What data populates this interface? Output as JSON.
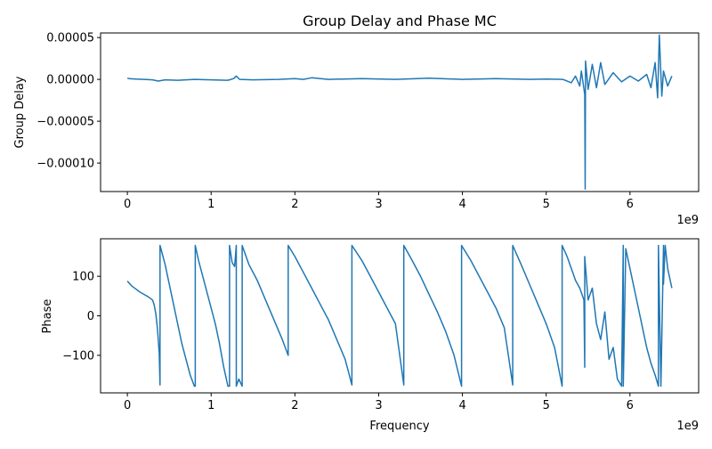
{
  "figure": {
    "title": "Group Delay and Phase MC",
    "line_color": "#1f77b4"
  },
  "chart_data": [
    {
      "type": "line",
      "title": "Group Delay and Phase MC",
      "xlabel": "",
      "ylabel": "Group Delay",
      "x_offset_text": "1e9",
      "xlim": [
        -0.32,
        6.82
      ],
      "ylim": [
        -0.000134,
        5.55e-05
      ],
      "xticks": [
        0,
        1,
        2,
        3,
        4,
        5,
        6
      ],
      "xtick_labels": [
        "0",
        "1",
        "2",
        "3",
        "4",
        "5",
        "6"
      ],
      "yticks": [
        5e-05,
        0.0,
        -5e-05,
        -0.0001
      ],
      "ytick_labels": [
        "0.00005",
        "0.00000",
        "−0.00005",
        "−0.00010"
      ],
      "grid": false,
      "series": [
        {
          "x": [
            0.0,
            0.02,
            0.1,
            0.2,
            0.3,
            0.37,
            0.45,
            0.6,
            0.8,
            1.0,
            1.2,
            1.27,
            1.3,
            1.34,
            1.5,
            1.8,
            2.0,
            2.1,
            2.2,
            2.4,
            2.8,
            3.2,
            3.6,
            4.0,
            4.4,
            4.8,
            5.0,
            5.2,
            5.3,
            5.35,
            5.4,
            5.42,
            5.46,
            5.465,
            5.47,
            5.5,
            5.55,
            5.6,
            5.65,
            5.7,
            5.8,
            5.9,
            6.0,
            6.1,
            6.2,
            6.25,
            6.3,
            6.33,
            6.35,
            6.38,
            6.4,
            6.45,
            6.5
          ],
          "y": [
            1.5e-06,
            1e-06,
            5e-07,
            0.0,
            -5e-07,
            -2e-06,
            -5e-07,
            -1e-06,
            0.0,
            -5e-07,
            -1e-06,
            1e-06,
            4e-06,
            0.0,
            -5e-07,
            0.0,
            1e-06,
            0.0,
            2e-06,
            0.0,
            1e-06,
            0.0,
            1.5e-06,
            0.0,
            1e-06,
            0.0,
            5e-07,
            0.0,
            -4e-06,
            4e-06,
            -8e-06,
            1e-05,
            -1.8e-05,
            -0.000131,
            2.2e-05,
            -1.2e-05,
            1.8e-05,
            -1e-05,
            2e-05,
            -6e-06,
            8e-06,
            -3e-06,
            4e-06,
            -2e-06,
            6e-06,
            -1e-05,
            2e-05,
            -2.2e-05,
            5.3e-05,
            -2e-05,
            1e-05,
            -8e-06,
            4e-06
          ]
        }
      ]
    },
    {
      "type": "line",
      "title": "",
      "xlabel": "Frequency",
      "ylabel": "Phase",
      "x_offset_text": "1e9",
      "xlim": [
        -0.32,
        6.82
      ],
      "ylim": [
        -195,
        195
      ],
      "xticks": [
        0,
        1,
        2,
        3,
        4,
        5,
        6
      ],
      "xtick_labels": [
        "0",
        "1",
        "2",
        "3",
        "4",
        "5",
        "6"
      ],
      "yticks": [
        100,
        0,
        -100
      ],
      "ytick_labels": [
        "100",
        "0",
        "−100"
      ],
      "grid": false,
      "series": [
        {
          "x": [
            0.0,
            0.05,
            0.1,
            0.15,
            0.2,
            0.25,
            0.3,
            0.32,
            0.34,
            0.36,
            0.38,
            0.39,
            0.39,
            0.45,
            0.5,
            0.55,
            0.6,
            0.65,
            0.7,
            0.75,
            0.8,
            0.81,
            0.81,
            0.85,
            0.9,
            0.95,
            1.0,
            1.05,
            1.1,
            1.15,
            1.2,
            1.22,
            1.22,
            1.25,
            1.28,
            1.3,
            1.3,
            1.33,
            1.37,
            1.37,
            1.45,
            1.55,
            1.65,
            1.75,
            1.85,
            1.92,
            1.92,
            2.0,
            2.1,
            2.2,
            2.3,
            2.4,
            2.5,
            2.6,
            2.68,
            2.68,
            2.8,
            2.9,
            3.0,
            3.1,
            3.2,
            3.3,
            3.3,
            3.4,
            3.5,
            3.6,
            3.7,
            3.8,
            3.9,
            3.99,
            3.99,
            4.1,
            4.2,
            4.3,
            4.4,
            4.5,
            4.6,
            4.6,
            4.7,
            4.8,
            4.9,
            5.0,
            5.1,
            5.19,
            5.19,
            5.25,
            5.3,
            5.35,
            5.4,
            5.45,
            5.46,
            5.46,
            5.5,
            5.55,
            5.6,
            5.65,
            5.7,
            5.75,
            5.8,
            5.85,
            5.9,
            5.92,
            5.92,
            5.95,
            6.0,
            6.05,
            6.1,
            6.15,
            6.2,
            6.25,
            6.3,
            6.34,
            6.34,
            6.37,
            6.4,
            6.4,
            6.42,
            6.45,
            6.5
          ],
          "y": [
            88,
            76,
            68,
            60,
            54,
            48,
            40,
            28,
            5,
            -35,
            -95,
            -175,
            178,
            130,
            80,
            30,
            -20,
            -70,
            -110,
            -150,
            -178,
            -178,
            178,
            140,
            100,
            60,
            20,
            -20,
            -70,
            -130,
            -178,
            -178,
            178,
            135,
            125,
            178,
            -178,
            -160,
            -178,
            178,
            130,
            90,
            40,
            -10,
            -60,
            -100,
            178,
            150,
            110,
            70,
            30,
            -10,
            -60,
            -110,
            -175,
            178,
            140,
            100,
            60,
            20,
            -20,
            -175,
            178,
            140,
            100,
            55,
            10,
            -40,
            -100,
            -178,
            178,
            140,
            100,
            60,
            20,
            -30,
            -175,
            178,
            130,
            80,
            30,
            -20,
            -80,
            -178,
            178,
            150,
            120,
            90,
            70,
            40,
            -130,
            150,
            40,
            70,
            -20,
            -60,
            10,
            -110,
            -80,
            -160,
            -178,
            178,
            -178,
            170,
            120,
            70,
            20,
            -30,
            -80,
            -120,
            -150,
            -178,
            178,
            -178,
            178,
            80,
            178,
            120,
            70
          ]
        }
      ]
    }
  ]
}
